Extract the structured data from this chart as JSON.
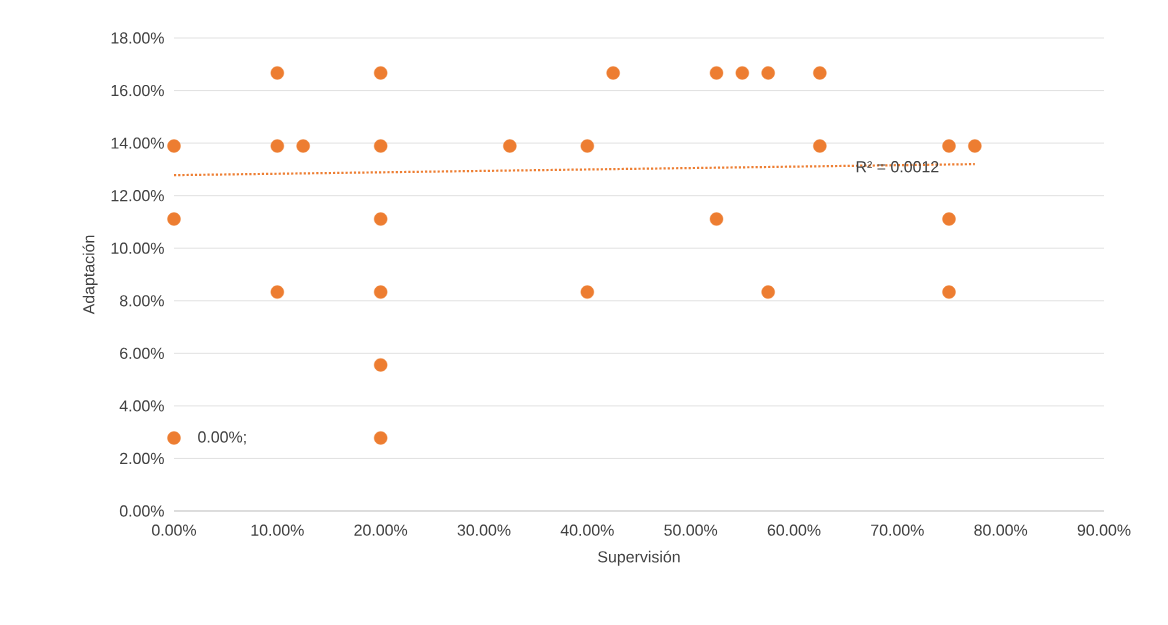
{
  "chart_data": {
    "type": "scatter",
    "xlabel": "Supervisión",
    "ylabel": "Adaptación",
    "series": [
      {
        "color": "#ed7d31",
        "marker": "circle",
        "x": [
          0,
          0,
          0,
          10,
          10,
          12.5,
          10,
          20,
          20,
          20,
          20,
          20,
          20,
          32.5,
          40,
          40,
          42.5,
          52.5,
          52.5,
          55,
          57.5,
          57.5,
          62.5,
          62.5,
          75,
          75,
          75,
          77.5
        ],
        "values": [
          13.89,
          11.11,
          2.78,
          16.67,
          13.89,
          13.89,
          8.33,
          16.67,
          13.89,
          11.11,
          8.33,
          5.56,
          2.78,
          13.89,
          13.89,
          8.33,
          16.67,
          16.67,
          11.11,
          16.67,
          16.67,
          8.33,
          16.67,
          13.89,
          13.89,
          11.11,
          8.33,
          13.89
        ]
      },
      {
        "type": "line",
        "color": "#ed7d31",
        "line_style": "dotted",
        "marker": "none",
        "x": [
          0,
          77.5
        ],
        "values": [
          12.78,
          13.2
        ]
      }
    ],
    "xlim": [
      0,
      90
    ],
    "ylim": [
      0,
      18
    ],
    "xticks": [
      {
        "value": 0,
        "label": "0.00%"
      },
      {
        "value": 10,
        "label": "10.00%"
      },
      {
        "value": 20,
        "label": "20.00%"
      },
      {
        "value": 30,
        "label": "30.00%"
      },
      {
        "value": 40,
        "label": "40.00%"
      },
      {
        "value": 50,
        "label": "50.00%"
      },
      {
        "value": 60,
        "label": "60.00%"
      },
      {
        "value": 70,
        "label": "70.00%"
      },
      {
        "value": 80,
        "label": "80.00%"
      },
      {
        "value": 90,
        "label": "90.00%"
      }
    ],
    "yticks": [
      {
        "value": 0,
        "label": "0.00%"
      },
      {
        "value": 2,
        "label": "2.00%"
      },
      {
        "value": 4,
        "label": "4.00%"
      },
      {
        "value": 6,
        "label": "6.00%"
      },
      {
        "value": 8,
        "label": "8.00%"
      },
      {
        "value": 10,
        "label": "10.00%"
      },
      {
        "value": 12,
        "label": "12.00%"
      },
      {
        "value": 14,
        "label": "14.00%"
      },
      {
        "value": 16,
        "label": "16.00%"
      },
      {
        "value": 18,
        "label": "18.00%"
      }
    ],
    "grid": "y",
    "annotations": [
      {
        "text": "R² = 0.0012",
        "x": 70,
        "y": 13.1
      },
      {
        "text": "0.00%;",
        "x": 0,
        "y": 2.78
      }
    ]
  }
}
